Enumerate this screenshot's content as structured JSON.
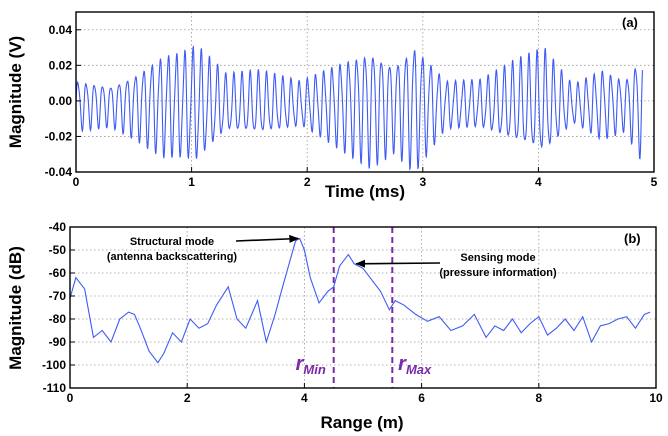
{
  "chart_data": [
    {
      "panel": "a",
      "type": "line",
      "tag": "(a)",
      "xlabel": "Time (ms)",
      "ylabel": "Magnitude (V)",
      "xlim": [
        0,
        5
      ],
      "ylim": [
        -0.04,
        0.05
      ],
      "xticks": [
        0,
        1,
        2,
        3,
        4,
        5
      ],
      "xtick_labels": [
        "0",
        "1",
        "2",
        "3",
        "4",
        "5"
      ],
      "yticks": [
        0.04,
        0.02,
        0.0,
        -0.02,
        -0.04
      ],
      "ytick_labels": [
        "0.04",
        "0.02",
        "0.00",
        "-0.02",
        "-0.04"
      ],
      "grid": true,
      "color": "#3f5bf4",
      "signal": {
        "description_of_values": "approximate beat oscillation, ~70 cycles over 5 ms",
        "cycles_per_ms": 14.1,
        "envelope_points_x": [
          0.0,
          0.3,
          0.5,
          0.75,
          0.9,
          1.05,
          1.3,
          1.6,
          1.95,
          2.3,
          2.55,
          2.75,
          2.93,
          3.2,
          3.5,
          3.8,
          4.05,
          4.3,
          4.55,
          4.75,
          4.9
        ],
        "envelope_points_y": [
          0.016,
          0.013,
          0.02,
          0.032,
          0.033,
          0.036,
          0.018,
          0.02,
          0.014,
          0.028,
          0.037,
          0.028,
          0.04,
          0.015,
          0.015,
          0.026,
          0.033,
          0.012,
          0.022,
          0.016,
          0.034
        ],
        "offset": -0.002
      }
    },
    {
      "panel": "b",
      "type": "line",
      "tag": "(b)",
      "xlabel": "Range (m)",
      "ylabel": "Magnitude (dB)",
      "xlim": [
        0,
        10
      ],
      "ylim": [
        -110,
        -40
      ],
      "xticks": [
        0,
        2,
        4,
        6,
        8,
        10
      ],
      "xtick_labels": [
        "0",
        "2",
        "4",
        "6",
        "8",
        "10"
      ],
      "yticks": [
        -40,
        -50,
        -60,
        -70,
        -80,
        -90,
        -100,
        -110
      ],
      "ytick_labels": [
        "-40",
        "-50",
        "-60",
        "-70",
        "-80",
        "-90",
        "-100",
        "-110"
      ],
      "grid": true,
      "color": "#3f5bf4",
      "x": [
        0.0,
        0.1,
        0.25,
        0.4,
        0.55,
        0.7,
        0.85,
        1.0,
        1.1,
        1.2,
        1.35,
        1.5,
        1.6,
        1.75,
        1.9,
        2.05,
        2.2,
        2.35,
        2.5,
        2.7,
        2.85,
        3.0,
        3.2,
        3.35,
        3.5,
        3.65,
        3.75,
        3.85,
        3.92,
        4.0,
        4.1,
        4.25,
        4.4,
        4.5,
        4.6,
        4.75,
        4.85,
        5.0,
        5.15,
        5.3,
        5.45,
        5.55,
        5.7,
        5.9,
        6.1,
        6.3,
        6.5,
        6.7,
        6.9,
        7.1,
        7.25,
        7.4,
        7.55,
        7.7,
        7.85,
        8.0,
        8.15,
        8.3,
        8.45,
        8.6,
        8.75,
        8.9,
        9.05,
        9.2,
        9.35,
        9.5,
        9.65,
        9.8,
        9.9
      ],
      "y": [
        -71,
        -62,
        -67,
        -88,
        -85,
        -90,
        -80,
        -77,
        -78,
        -84,
        -94,
        -99,
        -95,
        -86,
        -90,
        -80,
        -84,
        -82,
        -74,
        -66,
        -80,
        -84,
        -72,
        -90,
        -78,
        -64,
        -55,
        -46,
        -45,
        -50,
        -62,
        -73,
        -68,
        -66,
        -57,
        -52,
        -56,
        -58,
        -63,
        -68,
        -76,
        -72,
        -74,
        -78,
        -81,
        -79,
        -85,
        -83,
        -78,
        -88,
        -83,
        -85,
        -80,
        -86,
        -82,
        -79,
        -87,
        -84,
        -80,
        -85,
        -79,
        -90,
        -83,
        -82,
        -80,
        -79,
        -84,
        -78,
        -77
      ],
      "vlines": [
        4.5,
        5.5
      ],
      "vline_color": "#7a2aa8",
      "annotations": [
        {
          "text_line1": "Structural mode",
          "text_line2": "(antenna backscattering)",
          "arrow_to_x": 3.93,
          "arrow_to_y": -45
        },
        {
          "text_line1": "Sensing mode",
          "text_line2": "(pressure information)",
          "arrow_to_x": 4.85,
          "arrow_to_y": -56
        }
      ],
      "range_labels": [
        {
          "main": "r",
          "sub": "Min",
          "x": 3.85
        },
        {
          "main": "r",
          "sub": "Max",
          "x": 5.6
        }
      ]
    }
  ]
}
